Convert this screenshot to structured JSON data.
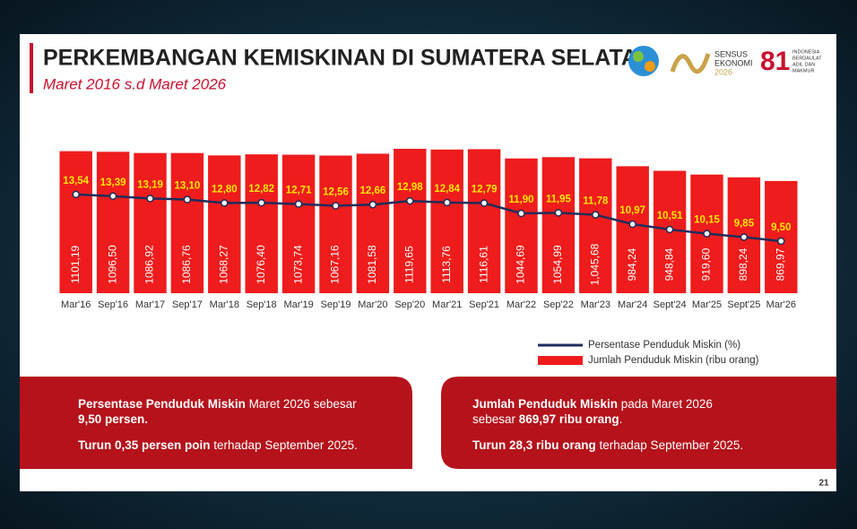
{
  "chart_data": {
    "type": "bar",
    "title": "PERKEMBANGAN KEMISKINAN DI SUMATERA SELATAN",
    "subtitle": "Maret 2016 s.d Maret 2026",
    "categories": [
      "Mar'16",
      "Sep'16",
      "Mar'17",
      "Sep'17",
      "Mar'18",
      "Sep'18",
      "Mar'19",
      "Sep'19",
      "Mar'20",
      "Sep'20",
      "Mar'21",
      "Sep'21",
      "Mar'22",
      "Sep'22",
      "Mar'23",
      "Mar'24",
      "Sept'24",
      "Mar'25",
      "Sept'25",
      "Mar'26"
    ],
    "ylim": [
      0,
      1300
    ],
    "y2lim": [
      5,
      19.5
    ],
    "series": [
      {
        "name": "Persentase Penduduk Miskin (%)",
        "type": "line",
        "axis": "y2",
        "color": "#1f2d5c",
        "label_color": "#ffe600",
        "values": [
          13.54,
          13.39,
          13.19,
          13.1,
          12.8,
          12.82,
          12.71,
          12.56,
          12.66,
          12.98,
          12.84,
          12.79,
          11.9,
          11.95,
          11.78,
          10.97,
          10.51,
          10.15,
          9.85,
          9.5
        ],
        "value_labels": [
          "13,54",
          "13,39",
          "13,19",
          "13,10",
          "12,80",
          "12,82",
          "12,71",
          "12,56",
          "12,66",
          "12,98",
          "12,84",
          "12,79",
          "11,90",
          "11,95",
          "11,78",
          "10,97",
          "10,51",
          "10,15",
          "9,85",
          "9,50"
        ]
      },
      {
        "name": "Jumlah Penduduk Miskin (ribu orang)",
        "type": "bar",
        "color": "#ee1c1c",
        "label_color": "#ffffff",
        "values": [
          1101.19,
          1096.5,
          1086.92,
          1086.76,
          1068.27,
          1076.4,
          1073.74,
          1067.16,
          1081.58,
          1119.65,
          1113.76,
          1116.61,
          1044.69,
          1054.99,
          1045.68,
          984.24,
          948.84,
          919.6,
          898.24,
          869.97
        ],
        "value_labels": [
          "1101,19",
          "1096,50",
          "1086,92",
          "1086,76",
          "1068,27",
          "1076,40",
          "1073,74",
          "1067,16",
          "1081,58",
          "1119,65",
          "1113,76",
          "1116,61",
          "1044,69",
          "1054,99",
          "1,045,68",
          "984,24",
          "948,84",
          "919,60",
          "898,24",
          "869,97"
        ]
      }
    ]
  },
  "logos": {
    "sensus": [
      "SENSUS",
      "EKONOMI",
      "2026"
    ],
    "anniversary": "81",
    "motto": [
      "INDONESIA",
      "BERDAULAT",
      "ADIL DAN",
      "MAKMUR"
    ]
  },
  "notes": [
    {
      "lines": [
        [
          {
            "text": "Persentase Penduduk Miskin",
            "bold": true
          },
          {
            "text": " Maret 2026 sebesar",
            "bold": false
          }
        ],
        [
          {
            "text": "9,50 persen.",
            "bold": true
          }
        ],
        [
          {
            "text": "Turun 0,35 persen poin",
            "bold": true
          },
          {
            "text": " terhadap September 2025.",
            "bold": false
          }
        ]
      ]
    },
    {
      "lines": [
        [
          {
            "text": "Jumlah Penduduk Miskin",
            "bold": true
          },
          {
            "text": " pada  Maret 2026",
            "bold": false
          }
        ],
        [
          {
            "text": "sebesar ",
            "bold": false
          },
          {
            "text": "869,97 ribu orang",
            "bold": true
          },
          {
            "text": ".",
            "bold": false
          }
        ],
        [
          {
            "text": "Turun 28,3 ribu orang",
            "bold": true
          },
          {
            "text": " terhadap September 2025.",
            "bold": false
          }
        ]
      ]
    }
  ],
  "page_number": "21"
}
